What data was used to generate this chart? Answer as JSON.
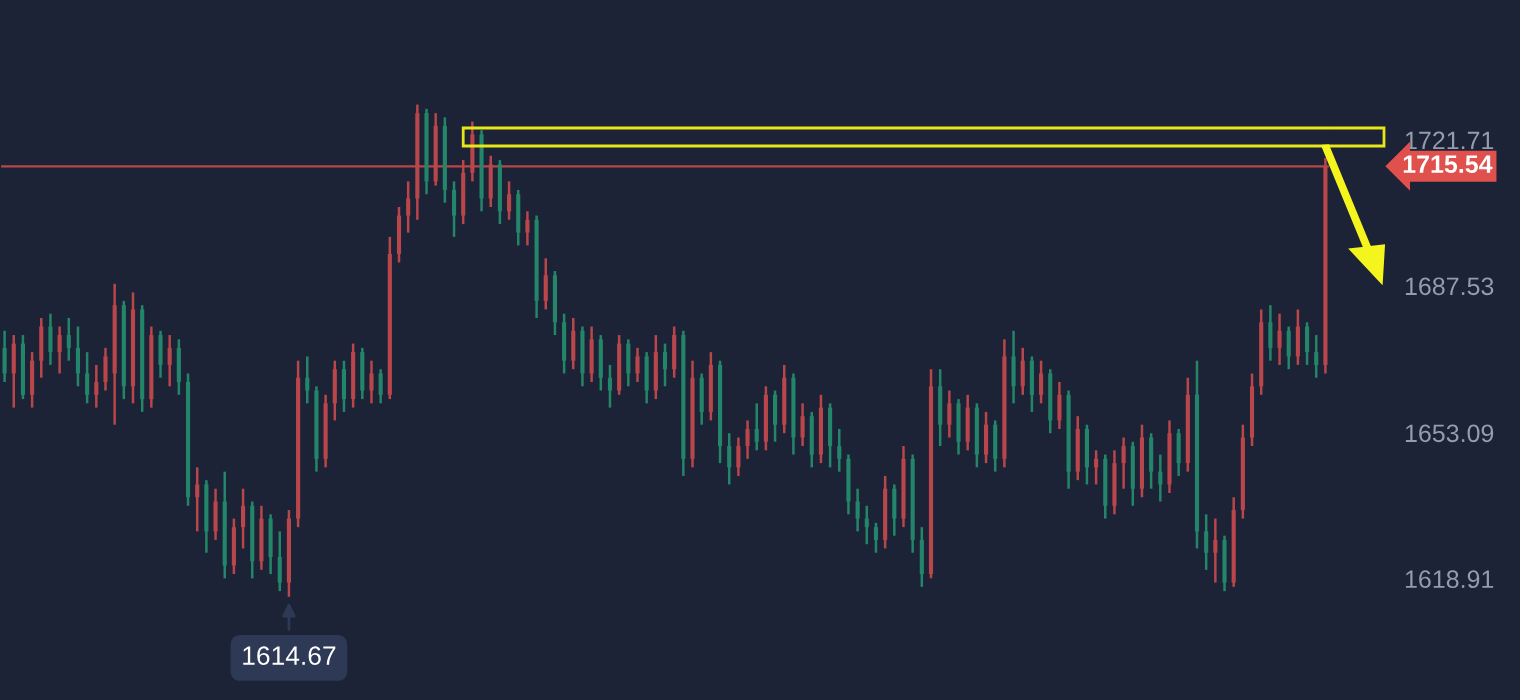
{
  "chart_data": {
    "type": "candlestick",
    "categories": [
      null,
      null,
      null,
      null,
      null,
      null,
      null,
      null,
      null,
      null,
      null,
      null,
      null,
      null,
      null,
      null,
      null,
      null,
      null,
      null,
      null,
      null,
      null,
      null,
      null,
      null,
      null,
      null,
      null,
      null,
      null,
      null,
      null,
      null,
      null,
      null,
      null,
      null,
      null,
      null,
      null,
      null,
      null,
      null,
      null,
      null,
      null,
      null,
      null,
      null,
      null,
      null,
      null,
      null,
      null,
      null,
      null,
      null,
      null,
      null,
      null,
      null,
      null,
      null,
      null,
      null,
      null,
      null,
      null,
      null,
      null,
      null,
      null,
      null,
      null,
      null,
      null,
      null,
      null,
      null,
      null,
      null,
      null,
      null,
      null,
      null,
      null,
      null,
      null,
      null,
      null,
      null,
      null,
      null,
      null,
      null,
      null,
      null,
      null,
      null,
      null,
      null,
      null,
      null,
      null,
      null,
      null,
      null,
      null,
      null,
      null,
      null,
      null,
      null,
      null,
      null,
      null,
      null,
      null,
      null,
      null,
      null,
      null,
      null,
      null,
      null,
      null,
      null,
      null,
      null,
      null,
      null,
      null,
      null,
      null,
      null,
      null,
      null,
      null,
      null,
      null,
      null,
      null,
      null,
      null
    ],
    "ohlc": [
      [
        1673,
        1677,
        1665,
        1667
      ],
      [
        1667,
        1676,
        1659,
        1674
      ],
      [
        1674,
        1676,
        1661,
        1662
      ],
      [
        1662,
        1672,
        1659,
        1670
      ],
      [
        1670,
        1680,
        1666,
        1678
      ],
      [
        1678,
        1681,
        1669,
        1672
      ],
      [
        1672,
        1678,
        1667,
        1676
      ],
      [
        1676,
        1680,
        1670,
        1673
      ],
      [
        1673,
        1678,
        1664,
        1667
      ],
      [
        1667,
        1672,
        1660,
        1662
      ],
      [
        1662,
        1669,
        1659,
        1665
      ],
      [
        1665,
        1673,
        1663,
        1671
      ],
      [
        1667,
        1688,
        1655,
        1683
      ],
      [
        1683,
        1684,
        1661,
        1664
      ],
      [
        1664,
        1686,
        1660,
        1682
      ],
      [
        1682,
        1683,
        1658,
        1661
      ],
      [
        1661,
        1678,
        1659,
        1676
      ],
      [
        1676,
        1677,
        1666,
        1669
      ],
      [
        1669,
        1676,
        1664,
        1673
      ],
      [
        1673,
        1675,
        1662,
        1665
      ],
      [
        1665,
        1667,
        1636,
        1638
      ],
      [
        1638,
        1645,
        1630,
        1641
      ],
      [
        1641,
        1642,
        1625,
        1630
      ],
      [
        1630,
        1640,
        1628,
        1637
      ],
      [
        1637,
        1644,
        1619,
        1622
      ],
      [
        1622,
        1633,
        1620,
        1631
      ],
      [
        1631,
        1640,
        1626,
        1636
      ],
      [
        1636,
        1637,
        1619,
        1623
      ],
      [
        1623,
        1636,
        1621,
        1633
      ],
      [
        1633,
        1634,
        1620,
        1624
      ],
      [
        1624,
        1630,
        1616,
        1618
      ],
      [
        1618,
        1635,
        1614.67,
        1633
      ],
      [
        1633,
        1670,
        1631,
        1666
      ],
      [
        1666,
        1671,
        1660,
        1663
      ],
      [
        1663,
        1664,
        1644,
        1647
      ],
      [
        1647,
        1662,
        1645,
        1660
      ],
      [
        1660,
        1670,
        1656,
        1668
      ],
      [
        1668,
        1670,
        1658,
        1661
      ],
      [
        1661,
        1674,
        1659,
        1672
      ],
      [
        1672,
        1673,
        1661,
        1663
      ],
      [
        1663,
        1670,
        1660,
        1667
      ],
      [
        1667,
        1668,
        1660,
        1662
      ],
      [
        1662,
        1699,
        1661,
        1695
      ],
      [
        1695,
        1706,
        1693,
        1704
      ],
      [
        1704,
        1712,
        1700,
        1708
      ],
      [
        1708,
        1730,
        1703,
        1728
      ],
      [
        1728,
        1729,
        1709,
        1712
      ],
      [
        1712,
        1728,
        1711,
        1725
      ],
      [
        1725,
        1727,
        1707,
        1710
      ],
      [
        1710,
        1712,
        1699,
        1704
      ],
      [
        1704,
        1717,
        1702,
        1714
      ],
      [
        1714,
        1726,
        1712,
        1723
      ],
      [
        1723,
        1724,
        1705,
        1708
      ],
      [
        1708,
        1718,
        1706,
        1716
      ],
      [
        1716,
        1717,
        1702,
        1705
      ],
      [
        1705,
        1712,
        1703,
        1709
      ],
      [
        1709,
        1710,
        1697,
        1700
      ],
      [
        1700,
        1705,
        1697,
        1703
      ],
      [
        1703,
        1704,
        1680,
        1684
      ],
      [
        1684,
        1694,
        1682,
        1690
      ],
      [
        1690,
        1691,
        1676,
        1679
      ],
      [
        1679,
        1681,
        1667,
        1670
      ],
      [
        1670,
        1680,
        1668,
        1677
      ],
      [
        1677,
        1678,
        1664,
        1667
      ],
      [
        1667,
        1678,
        1665,
        1675
      ],
      [
        1675,
        1676,
        1663,
        1666
      ],
      [
        1666,
        1669,
        1659,
        1663
      ],
      [
        1663,
        1676,
        1662,
        1674
      ],
      [
        1674,
        1675,
        1664,
        1667
      ],
      [
        1667,
        1673,
        1665,
        1671
      ],
      [
        1671,
        1672,
        1660,
        1663
      ],
      [
        1663,
        1676,
        1661,
        1672
      ],
      [
        1672,
        1674,
        1664,
        1668
      ],
      [
        1668,
        1678,
        1666,
        1676
      ],
      [
        1676,
        1677,
        1643,
        1647
      ],
      [
        1647,
        1670,
        1645,
        1666
      ],
      [
        1666,
        1667,
        1655,
        1658
      ],
      [
        1658,
        1672,
        1656,
        1669
      ],
      [
        1669,
        1670,
        1646,
        1650
      ],
      [
        1650,
        1653,
        1641,
        1645
      ],
      [
        1645,
        1652,
        1643,
        1650
      ],
      [
        1650,
        1656,
        1647,
        1654
      ],
      [
        1654,
        1660,
        1649,
        1651
      ],
      [
        1651,
        1664,
        1649,
        1662
      ],
      [
        1662,
        1663,
        1651,
        1655
      ],
      [
        1655,
        1669,
        1653,
        1666
      ],
      [
        1666,
        1667,
        1648,
        1652
      ],
      [
        1652,
        1660,
        1650,
        1657
      ],
      [
        1657,
        1658,
        1645,
        1648
      ],
      [
        1648,
        1662,
        1646,
        1659
      ],
      [
        1659,
        1660,
        1645,
        1650
      ],
      [
        1650,
        1654,
        1644,
        1647
      ],
      [
        1647,
        1648,
        1634,
        1637
      ],
      [
        1637,
        1640,
        1630,
        1633
      ],
      [
        1633,
        1636,
        1627,
        1631
      ],
      [
        1631,
        1632,
        1625,
        1628
      ],
      [
        1628,
        1643,
        1626,
        1640
      ],
      [
        1640,
        1641,
        1629,
        1633
      ],
      [
        1633,
        1650,
        1631,
        1647
      ],
      [
        1647,
        1648,
        1625,
        1628
      ],
      [
        1628,
        1631,
        1617,
        1620
      ],
      [
        1620,
        1668,
        1619,
        1664
      ],
      [
        1664,
        1668,
        1650,
        1655
      ],
      [
        1655,
        1663,
        1652,
        1660
      ],
      [
        1660,
        1661,
        1648,
        1651
      ],
      [
        1651,
        1662,
        1649,
        1659
      ],
      [
        1659,
        1660,
        1645,
        1648
      ],
      [
        1648,
        1658,
        1646,
        1655
      ],
      [
        1655,
        1656,
        1644,
        1647
      ],
      [
        1647,
        1675,
        1645,
        1671
      ],
      [
        1671,
        1677,
        1660,
        1664
      ],
      [
        1664,
        1673,
        1662,
        1670
      ],
      [
        1670,
        1671,
        1658,
        1662
      ],
      [
        1662,
        1670,
        1660,
        1667
      ],
      [
        1667,
        1668,
        1653,
        1656
      ],
      [
        1656,
        1665,
        1654,
        1662
      ],
      [
        1662,
        1663,
        1640,
        1644
      ],
      [
        1644,
        1657,
        1642,
        1654
      ],
      [
        1654,
        1655,
        1641,
        1645
      ],
      [
        1645,
        1649,
        1641,
        1647
      ],
      [
        1647,
        1648,
        1633,
        1636
      ],
      [
        1636,
        1649,
        1634,
        1646
      ],
      [
        1646,
        1652,
        1640,
        1650
      ],
      [
        1650,
        1651,
        1636,
        1640
      ],
      [
        1640,
        1655,
        1638,
        1652
      ],
      [
        1652,
        1653,
        1640,
        1644
      ],
      [
        1644,
        1648,
        1637,
        1641
      ],
      [
        1641,
        1656,
        1639,
        1653
      ],
      [
        1653,
        1654,
        1643,
        1646
      ],
      [
        1646,
        1666,
        1644,
        1662
      ],
      [
        1662,
        1670,
        1626,
        1630
      ],
      [
        1630,
        1634,
        1621,
        1625
      ],
      [
        1625,
        1633,
        1618,
        1628
      ],
      [
        1628,
        1629,
        1616,
        1618
      ],
      [
        1618,
        1638,
        1617,
        1635
      ],
      [
        1635,
        1655,
        1633,
        1652
      ],
      [
        1652,
        1667,
        1650,
        1664
      ],
      [
        1664,
        1682,
        1662,
        1679
      ],
      [
        1679,
        1683,
        1670,
        1673
      ],
      [
        1673,
        1681,
        1669,
        1677
      ],
      [
        1677,
        1678,
        1668,
        1671
      ],
      [
        1671,
        1682,
        1669,
        1678
      ],
      [
        1678,
        1679,
        1669,
        1672
      ],
      [
        1672,
        1676,
        1666,
        1669
      ],
      [
        1669,
        1717.5,
        1667,
        1715.54
      ]
    ],
    "ylim": [
      1590.5,
      1754.5
    ],
    "yticks": [
      1618.91,
      1653.09,
      1687.53,
      1721.71
    ],
    "tick_labels": "y",
    "ref_lines": [
      {
        "axis": "y",
        "value": 1715.54,
        "label": "1715.54",
        "color": "#e0504c"
      }
    ],
    "annotations": [
      {
        "text": "1614.67",
        "y": 1614.67
      }
    ]
  }
}
